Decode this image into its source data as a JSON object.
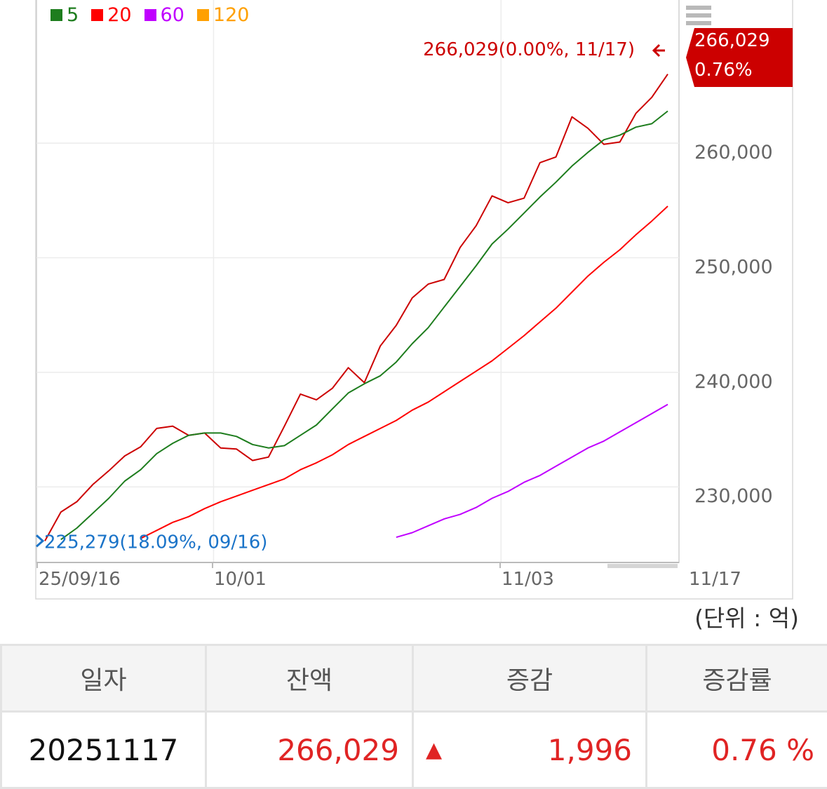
{
  "legend": [
    {
      "label": "5",
      "color": "#1e7d1e"
    },
    {
      "label": "20",
      "color": "#ff0000"
    },
    {
      "label": "60",
      "color": "#c000ff"
    },
    {
      "label": "120",
      "color": "#ffa000"
    }
  ],
  "chart_data": {
    "type": "line",
    "y_ticks": [
      "230,000",
      "240,000",
      "250,000",
      "260,000"
    ],
    "y_tick_values": [
      230000,
      240000,
      250000,
      260000
    ],
    "x_tick_labels": [
      "25/09/16",
      "10/01",
      "11/03",
      "11/17"
    ],
    "ylim": [
      223400,
      272500
    ],
    "n_points": 40,
    "grid": true,
    "series": [
      {
        "name": "balance",
        "color": "#cc0000",
        "values": [
          225279,
          227800,
          228700,
          230200,
          231400,
          232700,
          233500,
          235100,
          235300,
          234500,
          234700,
          233400,
          233300,
          232300,
          232600,
          235300,
          238100,
          237600,
          238600,
          240400,
          239100,
          242300,
          244100,
          246500,
          247700,
          248100,
          250900,
          252800,
          255400,
          254800,
          255200,
          258300,
          258800,
          262300,
          261300,
          259900,
          260100,
          262600,
          264000,
          266029
        ]
      },
      {
        "name": "5",
        "color": "#1e7d1e",
        "values": [
          null,
          225400,
          226400,
          227700,
          229000,
          230500,
          231500,
          232900,
          233800,
          234500,
          234700,
          234700,
          234400,
          233700,
          233400,
          233600,
          234500,
          235400,
          236800,
          238200,
          239000,
          239700,
          240900,
          242500,
          243900,
          245700,
          247500,
          249300,
          251200,
          252500,
          253900,
          255300,
          256600,
          258000,
          259200,
          260300,
          260700,
          261400,
          261700,
          262800
        ]
      },
      {
        "name": "20",
        "color": "#ff0000",
        "values": [
          null,
          null,
          null,
          null,
          null,
          null,
          225500,
          226200,
          226900,
          227400,
          228100,
          228700,
          229200,
          229700,
          230200,
          230700,
          231500,
          232100,
          232800,
          233700,
          234400,
          235100,
          235800,
          236700,
          237400,
          238300,
          239200,
          240100,
          241000,
          242100,
          243200,
          244400,
          245600,
          247000,
          248400,
          249600,
          250700,
          252000,
          253200,
          254500
        ]
      },
      {
        "name": "60",
        "color": "#c000ff",
        "values": [
          null,
          null,
          null,
          null,
          null,
          null,
          null,
          null,
          null,
          null,
          null,
          null,
          null,
          null,
          null,
          null,
          null,
          null,
          null,
          null,
          null,
          null,
          225600,
          226000,
          226600,
          227200,
          227600,
          228200,
          229000,
          229600,
          230400,
          231000,
          231800,
          232600,
          233400,
          234000,
          234800,
          235600,
          236400,
          237200
        ]
      }
    ],
    "annotations": {
      "last": "266,029(0.00%, 11/17)",
      "first": "225,279(18.09%, 09/16)"
    },
    "current_tag": {
      "value": "266,029",
      "pct": "0.76%"
    }
  },
  "unit_label": "(단위 : 억)",
  "table": {
    "headers": [
      "일자",
      "잔액",
      "증감",
      "증감률"
    ],
    "row": {
      "date": "20251117",
      "balance": "266,029",
      "change_arrow": "▲",
      "change": "1,996",
      "rate": "0.76 %"
    }
  }
}
